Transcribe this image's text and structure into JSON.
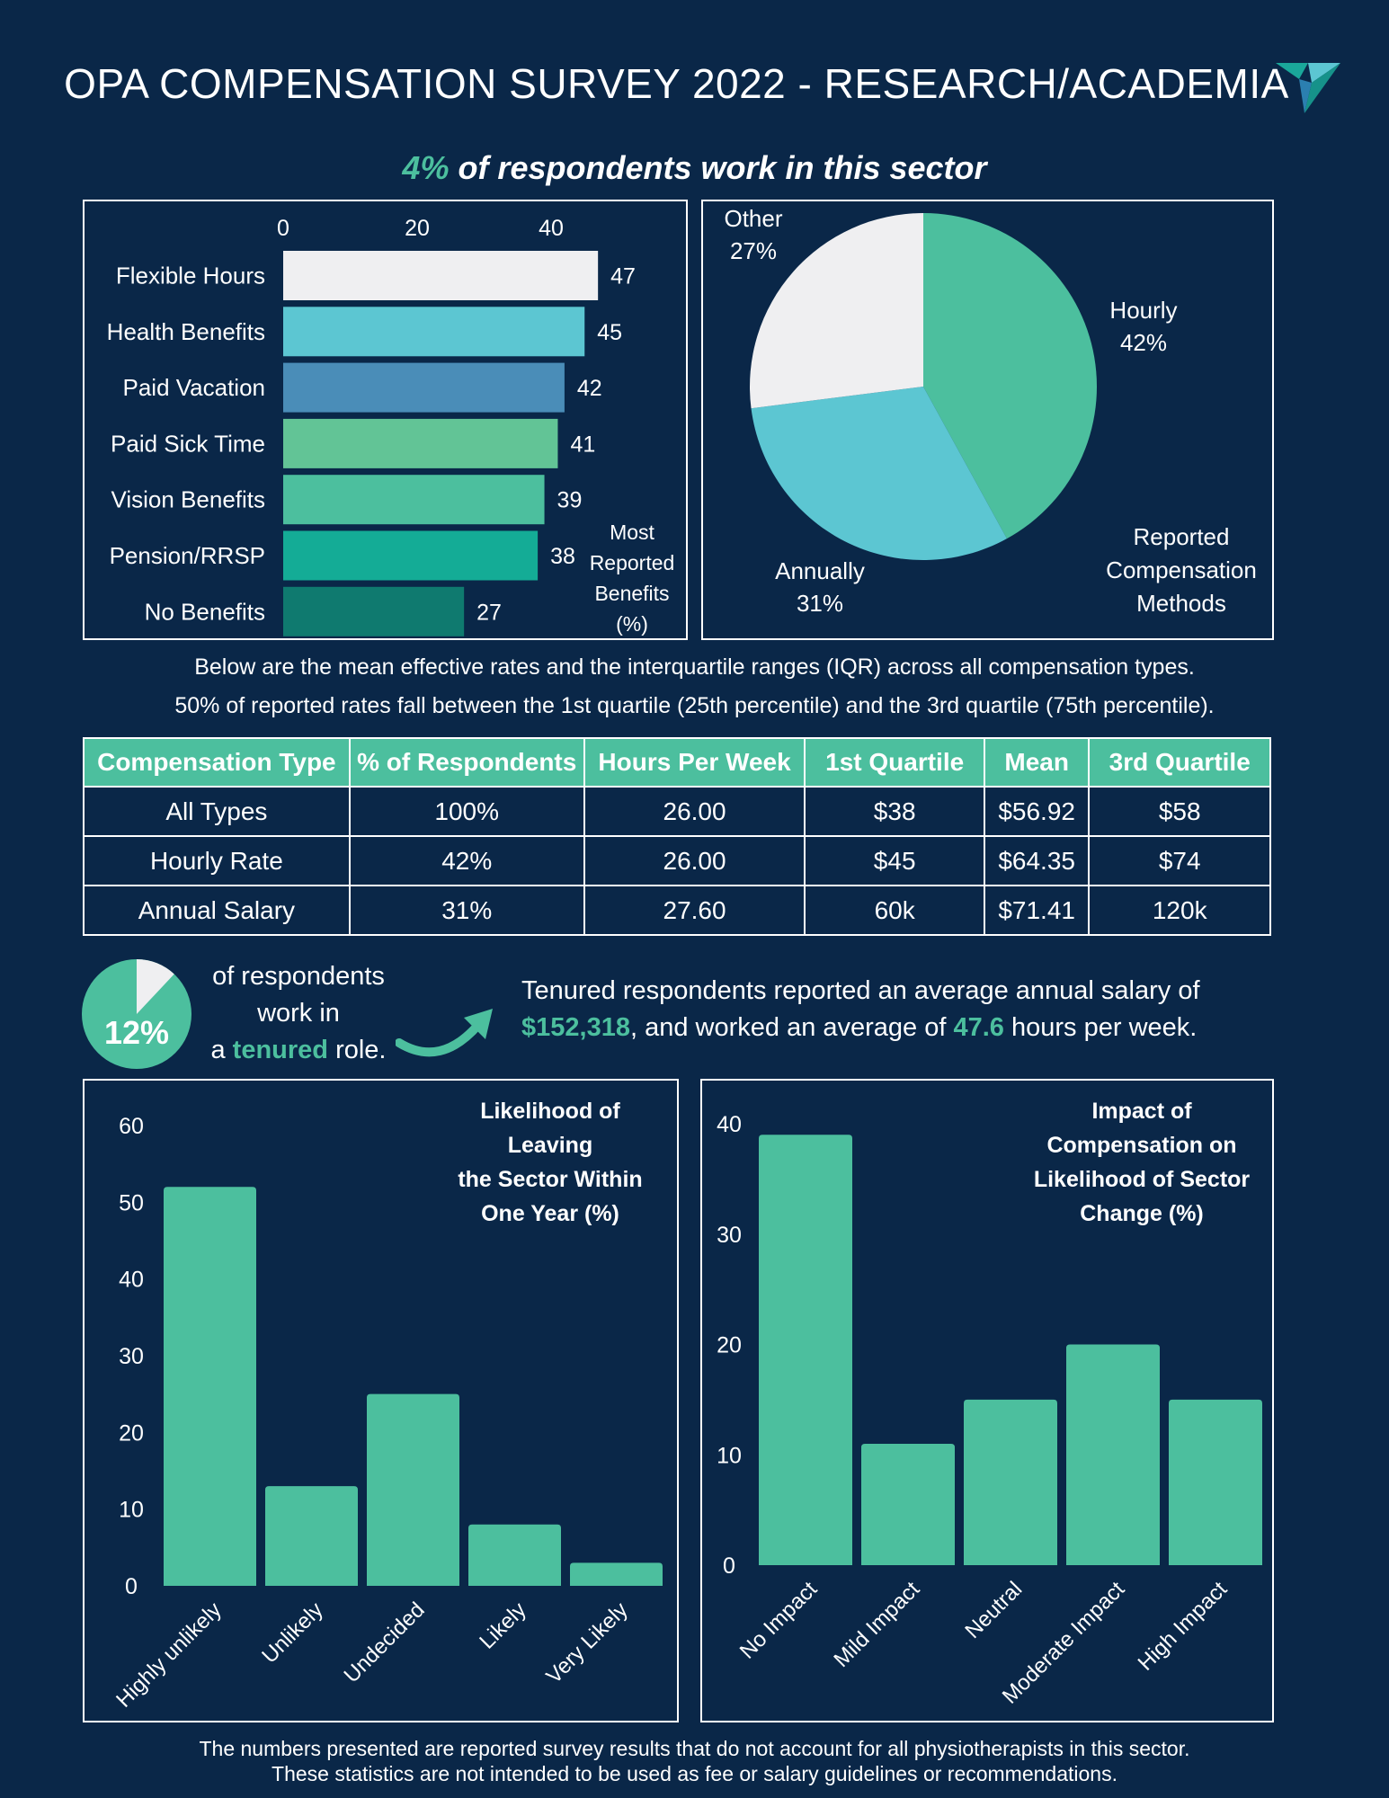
{
  "header": {
    "title": "OPA COMPENSATION SURVEY 2022 - RESEARCH/ACADEMIA",
    "subtitle_pct": "4%",
    "subtitle_rest": " of respondents work in this sector"
  },
  "description": {
    "line1": "Below are the mean effective rates and the interquartile ranges (IQR) across all compensation types.",
    "line2": "50% of reported rates fall between the 1st quartile (25th percentile) and the 3rd quartile (75th percentile)."
  },
  "table": {
    "headers": [
      "Compensation Type",
      "% of Respondents",
      "Hours Per Week",
      "1st Quartile",
      "Mean",
      "3rd Quartile"
    ],
    "rows": [
      [
        "All Types",
        "100%",
        "26.00",
        "$38",
        "$56.92",
        "$58"
      ],
      [
        "Hourly Rate",
        "42%",
        "26.00",
        "$45",
        "$64.35",
        "$74"
      ],
      [
        "Annual Salary",
        "31%",
        "27.60",
        "60k",
        "$71.41",
        "120k"
      ]
    ]
  },
  "tenure": {
    "pct": "12%",
    "pct_value": 12,
    "line1": "of respondents",
    "line2": "work in",
    "line3_pre": "a ",
    "line3_hl": "tenured",
    "line3_post": " role.",
    "summary_pre": "Tenured respondents reported an average annual salary of ",
    "salary": "$152,318",
    "summary_mid": ", and worked an average of ",
    "hours": "47.6",
    "summary_post": " hours per week."
  },
  "footer": {
    "line1": "The numbers presented are reported survey results that do not account for all physiotherapists in this sector.",
    "line2": "These statistics are not intended to be used as fee or salary guidelines or recommendations."
  },
  "colors": {
    "background": "#0a2748",
    "accent": "#4cbf9e",
    "white": "#ffffff"
  },
  "icons": {
    "logo": "opa-logo-icon",
    "arrow": "curved-arrow-icon"
  },
  "chart_data": [
    {
      "type": "bar",
      "orientation": "horizontal",
      "title": "Most Reported Benefits (%)",
      "title_lines": [
        "Most",
        "Reported",
        "Benefits",
        "(%)"
      ],
      "categories": [
        "Flexible Hours",
        "Health Benefits",
        "Paid Vacation",
        "Paid Sick Time",
        "Vision Benefits",
        "Pension/RRSP",
        "No Benefits"
      ],
      "values": [
        47,
        45,
        42,
        41,
        39,
        38,
        27
      ],
      "colors": [
        "#efeff1",
        "#5cc6d2",
        "#4a8db8",
        "#62c496",
        "#4cbf9e",
        "#14ac96",
        "#0f7a6f"
      ],
      "ticks": [
        0,
        20,
        40
      ],
      "xlim": [
        0,
        47
      ],
      "axis_position": "top"
    },
    {
      "type": "pie",
      "title": "Reported Compensation Methods",
      "title_lines": [
        "Reported",
        "Compensation",
        "Methods"
      ],
      "labels": [
        "Hourly",
        "Annually",
        "Other"
      ],
      "pct_labels": [
        "42%",
        "31%",
        "27%"
      ],
      "values": [
        42,
        31,
        27
      ],
      "colors": [
        "#4cbf9e",
        "#5cc6d2",
        "#efeff1"
      ]
    },
    {
      "type": "bar",
      "title": "Likelihood of Leaving the Sector Within One Year (%)",
      "title_lines": [
        "Likelihood of",
        "Leaving",
        "the Sector Within",
        "One Year (%)"
      ],
      "categories": [
        "Highly unlikely",
        "Unlikely",
        "Undecided",
        "Likely",
        "Very Likely"
      ],
      "values": [
        52,
        13,
        25,
        8,
        3
      ],
      "ticks": [
        0,
        10,
        20,
        30,
        40,
        50,
        60
      ],
      "ylim": [
        0,
        60
      ],
      "color": "#4cbf9e",
      "grid": false
    },
    {
      "type": "bar",
      "title": "Impact of Compensation on Likelihood of Sector Change (%)",
      "title_lines": [
        "Impact of",
        "Compensation on",
        "Likelihood of Sector",
        "Change (%)"
      ],
      "categories": [
        "No Impact",
        "Mild Impact",
        "Neutral",
        "Moderate Impact",
        "High Impact"
      ],
      "values": [
        39,
        11,
        15,
        20,
        15
      ],
      "ticks": [
        0,
        10,
        20,
        30,
        40
      ],
      "ylim": [
        0,
        40
      ],
      "color": "#4cbf9e",
      "grid": false
    }
  ]
}
